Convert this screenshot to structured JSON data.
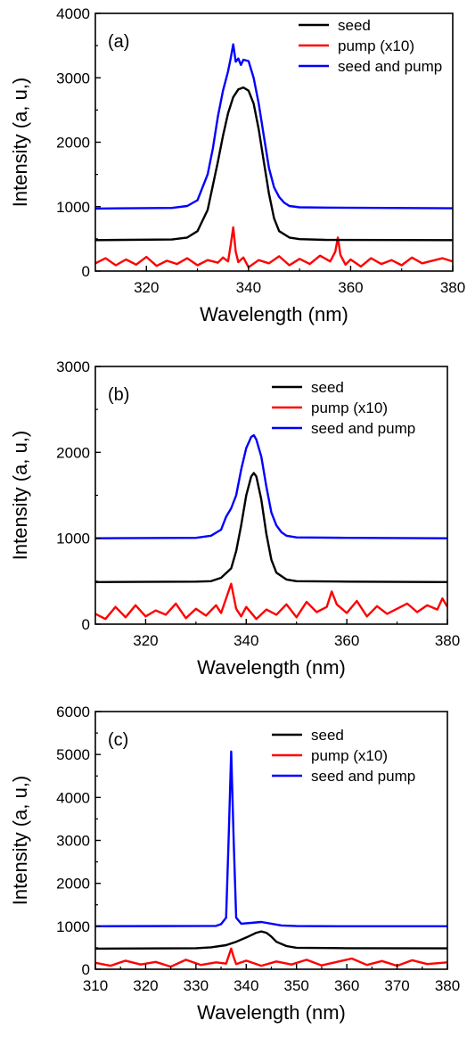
{
  "chart_data": [
    {
      "type": "line",
      "panel_label": "(a)",
      "xlabel": "Wavelength (nm)",
      "ylabel": "Intensity (a, u,)",
      "xlim": [
        310,
        380
      ],
      "ylim": [
        0,
        4000
      ],
      "xticks": [
        320,
        340,
        360,
        380
      ],
      "yticks": [
        0,
        1000,
        2000,
        3000,
        4000
      ],
      "legend_position": "top-right",
      "series": [
        {
          "name": "seed",
          "color": "#000000",
          "x": [
            310,
            325,
            328,
            330,
            332,
            334,
            335,
            336,
            337,
            338,
            339,
            340,
            341,
            342,
            343,
            344,
            345,
            346,
            348,
            350,
            355,
            380
          ],
          "y": [
            480,
            490,
            520,
            620,
            950,
            1700,
            2100,
            2450,
            2700,
            2820,
            2850,
            2800,
            2600,
            2200,
            1700,
            1200,
            820,
            620,
            520,
            495,
            485,
            480
          ]
        },
        {
          "name": "pump (x10)",
          "color": "#ff0000",
          "x": [
            310,
            312,
            314,
            316,
            318,
            320,
            322,
            324,
            326,
            328,
            330,
            332,
            334,
            335,
            336,
            336.5,
            337,
            337.5,
            338,
            339,
            340,
            342,
            344,
            346,
            348,
            350,
            352,
            354,
            356,
            357,
            357.5,
            358,
            359,
            360,
            362,
            364,
            366,
            368,
            370,
            372,
            374,
            376,
            378,
            380
          ],
          "y": [
            120,
            200,
            90,
            180,
            100,
            220,
            80,
            160,
            110,
            200,
            90,
            170,
            130,
            210,
            150,
            400,
            680,
            300,
            140,
            210,
            60,
            170,
            120,
            230,
            90,
            190,
            110,
            240,
            150,
            300,
            520,
            250,
            100,
            180,
            70,
            200,
            110,
            170,
            90,
            210,
            120,
            160,
            200,
            150
          ]
        },
        {
          "name": "seed and pump",
          "color": "#0000ff",
          "x": [
            310,
            325,
            328,
            330,
            332,
            333,
            334,
            335,
            336,
            336.5,
            337,
            337.5,
            338,
            338.5,
            339,
            340,
            341,
            342,
            343,
            344,
            345,
            346,
            347,
            348,
            350,
            355,
            380
          ],
          "y": [
            970,
            980,
            1010,
            1100,
            1500,
            1900,
            2400,
            2800,
            3100,
            3300,
            3520,
            3250,
            3300,
            3200,
            3280,
            3260,
            3000,
            2600,
            2100,
            1600,
            1300,
            1150,
            1060,
            1010,
            990,
            985,
            975
          ]
        }
      ]
    },
    {
      "type": "line",
      "panel_label": "(b)",
      "xlabel": "Wavelength (nm)",
      "ylabel": "Intensity (a, u,)",
      "xlim": [
        310,
        380
      ],
      "ylim": [
        0,
        3000
      ],
      "xticks": [
        320,
        340,
        360,
        380
      ],
      "yticks": [
        0,
        1000,
        2000,
        3000
      ],
      "legend_position": "top-right",
      "series": [
        {
          "name": "seed",
          "color": "#000000",
          "x": [
            310,
            330,
            333,
            335,
            337,
            338,
            339,
            340,
            341,
            341.5,
            342,
            343,
            344,
            345,
            346,
            348,
            350,
            360,
            380
          ],
          "y": [
            490,
            495,
            500,
            540,
            650,
            850,
            1150,
            1500,
            1720,
            1760,
            1720,
            1450,
            1050,
            750,
            600,
            520,
            500,
            495,
            490
          ]
        },
        {
          "name": "pump (x10)",
          "color": "#ff0000",
          "x": [
            310,
            312,
            314,
            316,
            318,
            320,
            322,
            324,
            326,
            328,
            330,
            332,
            334,
            335,
            336,
            337,
            338,
            339,
            340,
            342,
            344,
            346,
            348,
            350,
            352,
            354,
            356,
            357,
            358,
            360,
            362,
            364,
            366,
            368,
            370,
            372,
            374,
            376,
            378,
            379,
            380
          ],
          "y": [
            120,
            60,
            200,
            80,
            220,
            90,
            160,
            110,
            240,
            70,
            180,
            100,
            220,
            130,
            300,
            470,
            180,
            90,
            200,
            60,
            170,
            110,
            230,
            80,
            260,
            140,
            200,
            380,
            230,
            130,
            270,
            90,
            210,
            120,
            180,
            240,
            140,
            220,
            170,
            300,
            200
          ]
        },
        {
          "name": "seed and pump",
          "color": "#0000ff",
          "x": [
            310,
            330,
            333,
            335,
            336,
            337,
            338,
            339,
            340,
            341,
            341.5,
            342,
            343,
            344,
            345,
            346,
            347,
            348,
            350,
            360,
            380
          ],
          "y": [
            1000,
            1005,
            1030,
            1100,
            1250,
            1350,
            1500,
            1800,
            2050,
            2180,
            2200,
            2150,
            1950,
            1600,
            1300,
            1150,
            1070,
            1030,
            1010,
            1005,
            1000
          ]
        }
      ]
    },
    {
      "type": "line",
      "panel_label": "(c)",
      "xlabel": "Wavelength (nm)",
      "ylabel": "Intensity (a, u,)",
      "xlim": [
        310,
        380
      ],
      "ylim": [
        0,
        6000
      ],
      "xticks": [
        310,
        320,
        330,
        340,
        350,
        360,
        370,
        380
      ],
      "yticks": [
        0,
        1000,
        2000,
        3000,
        4000,
        5000,
        6000
      ],
      "legend_position": "top-right",
      "series": [
        {
          "name": "seed",
          "color": "#000000",
          "x": [
            310,
            325,
            330,
            333,
            336,
            338,
            340,
            342,
            343,
            344,
            345,
            346,
            348,
            350,
            360,
            380
          ],
          "y": [
            480,
            485,
            490,
            510,
            560,
            640,
            740,
            850,
            880,
            850,
            760,
            640,
            540,
            500,
            490,
            485
          ]
        },
        {
          "name": "pump (x10)",
          "color": "#ff0000",
          "x": [
            310,
            313,
            316,
            319,
            322,
            325,
            328,
            331,
            334,
            336,
            336.5,
            337,
            337.5,
            338,
            340,
            343,
            346,
            349,
            352,
            355,
            358,
            361,
            364,
            367,
            370,
            373,
            376,
            380
          ],
          "y": [
            150,
            80,
            200,
            110,
            170,
            60,
            220,
            100,
            160,
            130,
            300,
            480,
            280,
            120,
            200,
            80,
            180,
            110,
            220,
            90,
            170,
            250,
            100,
            190,
            80,
            210,
            120,
            160
          ]
        },
        {
          "name": "seed and pump",
          "color": "#0000ff",
          "x": [
            310,
            334,
            335,
            336,
            336.5,
            337,
            337.5,
            338,
            339,
            341,
            343,
            345,
            347,
            350,
            360,
            380
          ],
          "y": [
            1000,
            1010,
            1050,
            1200,
            3000,
            5070,
            3000,
            1200,
            1060,
            1080,
            1100,
            1060,
            1020,
            1005,
            1000,
            1000
          ]
        }
      ]
    }
  ]
}
